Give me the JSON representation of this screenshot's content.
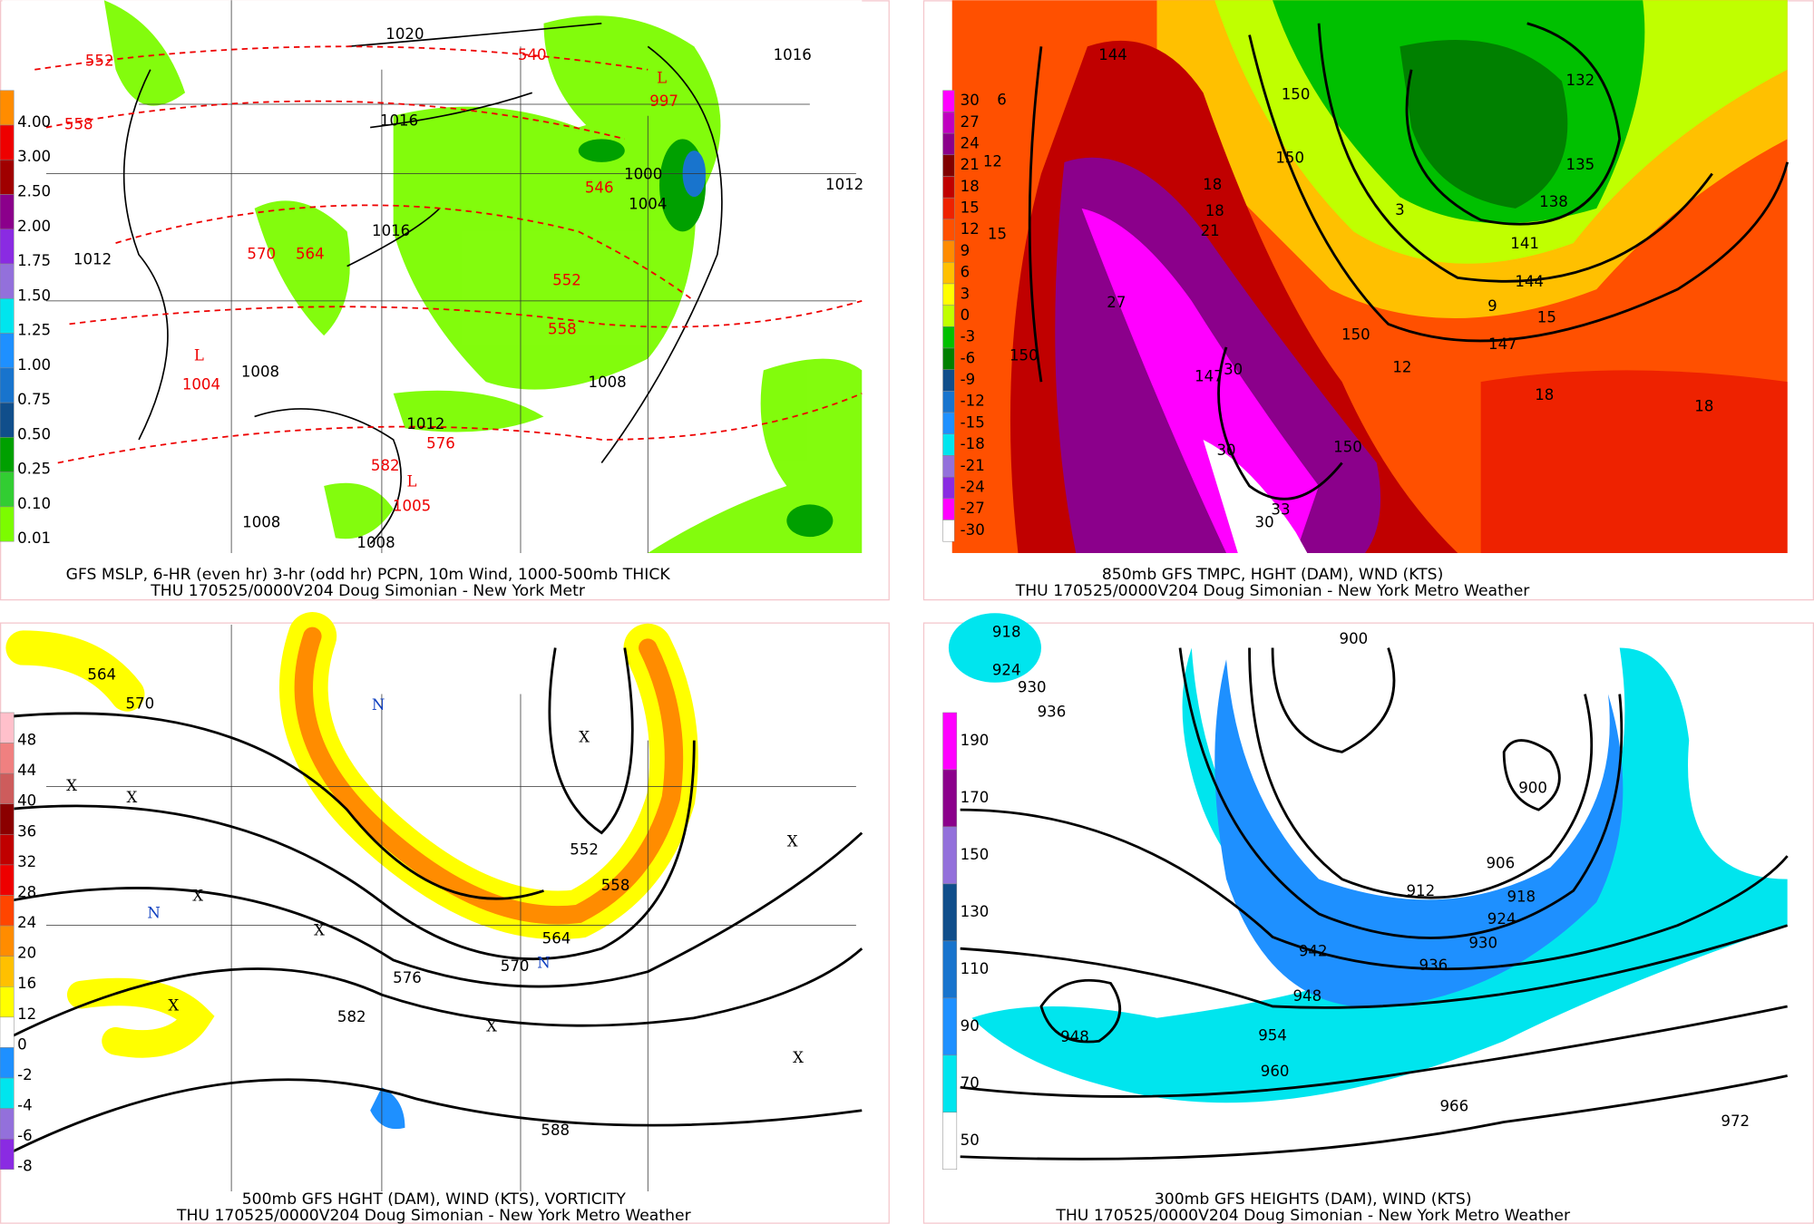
{
  "panels": [
    {
      "caption": [
        "GFS MSLP, 6-HR (even hr) 3-hr (odd hr) PCPN, 10m Wind, 1000-500mb THICK",
        "THU 170525/0000V204 Doug Simonian - New York Metr"
      ],
      "legend": [
        {
          "label": "4.00",
          "color": "#ff8c00"
        },
        {
          "label": "3.00",
          "color": "#ee0000"
        },
        {
          "label": "2.50",
          "color": "#a00000"
        },
        {
          "label": "2.00",
          "color": "#8b008b"
        },
        {
          "label": "1.75",
          "color": "#8a2be2"
        },
        {
          "label": "1.50",
          "color": "#9370db"
        },
        {
          "label": "1.25",
          "color": "#00e5ee"
        },
        {
          "label": "1.00",
          "color": "#1e90ff"
        },
        {
          "label": "0.75",
          "color": "#1874cd"
        },
        {
          "label": "0.50",
          "color": "#104e8b"
        },
        {
          "label": "0.25",
          "color": "#00a000"
        },
        {
          "label": "0.10",
          "color": "#32cd32"
        },
        {
          "label": "0.01",
          "color": "#7cfc00"
        }
      ],
      "labels": [
        "1020",
        "552",
        "558",
        "L",
        "997",
        "546",
        "1000",
        "1004",
        "1016",
        "1016",
        "570",
        "564",
        "1012",
        "L",
        "1004",
        "1008",
        "552",
        "558",
        "1008",
        "1012",
        "576",
        "582",
        "L",
        "1005",
        "1008",
        "1008",
        "540",
        "1016",
        "1012"
      ]
    },
    {
      "caption": [
        "850mb GFS TMPC, HGHT (DAM), WND (KTS)",
        "THU 170525/0000V204 Doug Simonian - New York Metro Weather"
      ],
      "legend": [
        {
          "label": "30",
          "color": "#ff00ff"
        },
        {
          "label": "27",
          "color": "#c000c0"
        },
        {
          "label": "24",
          "color": "#8b008b"
        },
        {
          "label": "21",
          "color": "#800000"
        },
        {
          "label": "18",
          "color": "#c00000"
        },
        {
          "label": "15",
          "color": "#ee2200"
        },
        {
          "label": "12",
          "color": "#ff5000"
        },
        {
          "label": "9",
          "color": "#ff8c00"
        },
        {
          "label": "6",
          "color": "#ffc000"
        },
        {
          "label": "3",
          "color": "#ffff00"
        },
        {
          "label": "0",
          "color": "#c0ff00"
        },
        {
          "label": "-3",
          "color": "#00c000"
        },
        {
          "label": "-6",
          "color": "#008000"
        },
        {
          "label": "-9",
          "color": "#104e8b"
        },
        {
          "label": "-12",
          "color": "#1874cd"
        },
        {
          "label": "-15",
          "color": "#1e90ff"
        },
        {
          "label": "-18",
          "color": "#00e5ee"
        },
        {
          "label": "-21",
          "color": "#9370db"
        },
        {
          "label": "-24",
          "color": "#8a2be2"
        },
        {
          "label": "-27",
          "color": "#ff00ff"
        },
        {
          "label": "-30",
          "color": "#ffffff"
        }
      ],
      "labels": [
        "144",
        "150",
        "150",
        "132",
        "135",
        "138",
        "141",
        "144",
        "147",
        "150",
        "147",
        "150",
        "150",
        "18",
        "18",
        "21",
        "27",
        "30",
        "30",
        "33",
        "30",
        "12",
        "15",
        "6",
        "3",
        "9",
        "15",
        "18",
        "18",
        "12"
      ]
    },
    {
      "caption": [
        "500mb GFS HGHT (DAM), WIND (KTS), VORTICITY",
        "THU 170525/0000V204 Doug Simonian - New York Metro Weather"
      ],
      "legend": [
        {
          "label": "48",
          "color": "#ffc0cb"
        },
        {
          "label": "44",
          "color": "#f08080"
        },
        {
          "label": "40",
          "color": "#cd5c5c"
        },
        {
          "label": "36",
          "color": "#8b0000"
        },
        {
          "label": "32",
          "color": "#c00000"
        },
        {
          "label": "28",
          "color": "#ee0000"
        },
        {
          "label": "24",
          "color": "#ff4500"
        },
        {
          "label": "20",
          "color": "#ff8c00"
        },
        {
          "label": "16",
          "color": "#ffc000"
        },
        {
          "label": "12",
          "color": "#ffff00"
        },
        {
          "label": "0",
          "color": "#ffffff"
        },
        {
          "label": "-2",
          "color": "#1e90ff"
        },
        {
          "label": "-4",
          "color": "#00e5ee"
        },
        {
          "label": "-6",
          "color": "#9370db"
        },
        {
          "label": "-8",
          "color": "#8a2be2"
        }
      ],
      "labels": [
        "564",
        "570",
        "X",
        "X",
        "X",
        "N",
        "X",
        "N",
        "X",
        "X",
        "552",
        "558",
        "564",
        "570",
        "576",
        "582",
        "588",
        "X",
        "N",
        "X",
        "X"
      ]
    },
    {
      "caption": [
        "300mb GFS HEIGHTS (DAM), WIND (KTS)",
        "THU 170525/0000V204 Doug Simonian - New York Metro Weather"
      ],
      "legend": [
        {
          "label": "190",
          "color": "#ff00ff"
        },
        {
          "label": "170",
          "color": "#8b008b"
        },
        {
          "label": "150",
          "color": "#9370db"
        },
        {
          "label": "130",
          "color": "#104e8b"
        },
        {
          "label": "110",
          "color": "#1874cd"
        },
        {
          "label": "90",
          "color": "#1e90ff"
        },
        {
          "label": "70",
          "color": "#00e5ee"
        },
        {
          "label": "50",
          "color": "#ffffff"
        }
      ],
      "labels": [
        "918",
        "924",
        "930",
        "936",
        "900",
        "900",
        "906",
        "912",
        "918",
        "924",
        "930",
        "936",
        "942",
        "948",
        "948",
        "954",
        "960",
        "966",
        "972"
      ]
    }
  ]
}
